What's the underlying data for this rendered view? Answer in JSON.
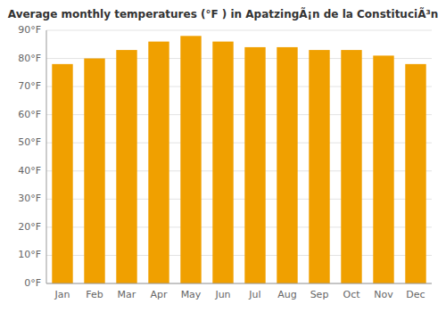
{
  "chart_data": {
    "type": "bar",
    "title": "Average monthly temperatures (°F ) in ApatzingÃ¡n de la ConstituciÃ³n",
    "categories": [
      "Jan",
      "Feb",
      "Mar",
      "Apr",
      "May",
      "Jun",
      "Jul",
      "Aug",
      "Sep",
      "Oct",
      "Nov",
      "Dec"
    ],
    "values": [
      78,
      80,
      83,
      86,
      88,
      86,
      84,
      84,
      83,
      83,
      81,
      78
    ],
    "color": "#F0A000",
    "ylim": [
      0,
      90
    ],
    "yticks": [
      {
        "value": 0,
        "label": "0°F"
      },
      {
        "value": 10,
        "label": "10°F"
      },
      {
        "value": 20,
        "label": "20°F"
      },
      {
        "value": 30,
        "label": "30°F"
      },
      {
        "value": 40,
        "label": "40°F"
      },
      {
        "value": 50,
        "label": "50°F"
      },
      {
        "value": 60,
        "label": "60°F"
      },
      {
        "value": 70,
        "label": "70°F"
      },
      {
        "value": 80,
        "label": "80°F"
      },
      {
        "value": 90,
        "label": "90°F"
      }
    ],
    "grid": true
  }
}
